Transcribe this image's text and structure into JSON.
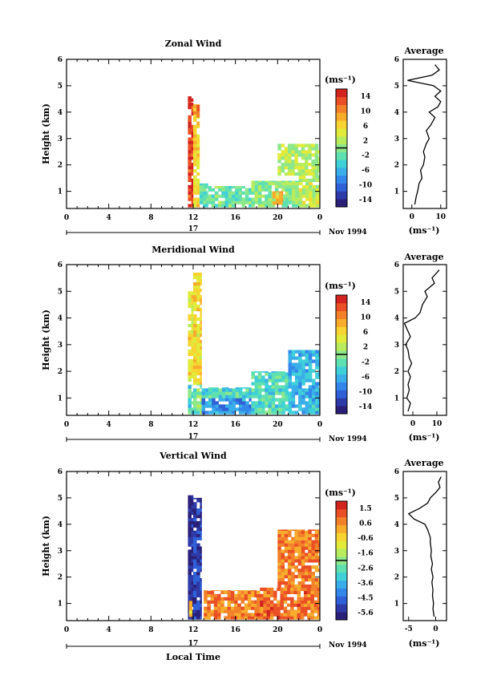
{
  "chart_data": [
    {
      "type": "heatmap",
      "title": "Zonal Wind",
      "xlabel": "",
      "ylabel": "Height (km)",
      "x_ticks": [
        "0",
        "4",
        "8",
        "12",
        "16",
        "20",
        "0"
      ],
      "y_ticks": [
        "1",
        "2",
        "3",
        "4",
        "5",
        "6"
      ],
      "xlim": [
        0,
        24
      ],
      "ylim": [
        0.35,
        6.0
      ],
      "date_label": "17",
      "date_suffix": "Nov 1994",
      "colorbar": {
        "unit": "(ms⁻¹)",
        "ticks": [
          "14",
          "10",
          "6",
          "2",
          "-2",
          "-6",
          "-10",
          "-14"
        ],
        "range": [
          -16,
          16
        ]
      },
      "data_regions": [
        {
          "x": [
            11.5,
            12.0
          ],
          "y": [
            0.4,
            4.4
          ],
          "value": 14
        },
        {
          "x": [
            11.5,
            12.0
          ],
          "y": [
            4.4,
            4.6
          ],
          "value": 16
        },
        {
          "x": [
            12.0,
            12.6
          ],
          "y": [
            0.4,
            3.8
          ],
          "value": 6
        },
        {
          "x": [
            12.0,
            12.6
          ],
          "y": [
            3.8,
            4.3
          ],
          "value": 10
        },
        {
          "x": [
            12.6,
            13.4
          ],
          "y": [
            0.4,
            1.3
          ],
          "value": -2
        },
        {
          "x": [
            13.4,
            17.5
          ],
          "y": [
            0.4,
            1.2
          ],
          "value": -1
        },
        {
          "x": [
            17.5,
            22.0
          ],
          "y": [
            0.4,
            1.4
          ],
          "value": 0
        },
        {
          "x": [
            19.5,
            20.5
          ],
          "y": [
            0.5,
            1.0
          ],
          "value": 9
        },
        {
          "x": [
            22.0,
            24.0
          ],
          "y": [
            0.4,
            1.6
          ],
          "value": 3
        },
        {
          "x": [
            20.0,
            24.0
          ],
          "y": [
            1.6,
            2.8
          ],
          "value": 2
        }
      ],
      "profile": {
        "title": "Average",
        "xlabel": "(ms⁻¹)",
        "x_ticks": [
          "0",
          "10"
        ],
        "xlim": [
          -3,
          12
        ],
        "height": [
          0.5,
          0.8,
          1.0,
          1.3,
          1.5,
          1.8,
          2.0,
          2.3,
          2.5,
          2.8,
          3.0,
          3.3,
          3.5,
          3.8,
          4.0,
          4.2,
          4.4,
          4.6,
          4.8,
          5.0,
          5.2,
          5.4,
          5.6,
          5.8
        ],
        "value": [
          1.0,
          1.5,
          2.0,
          2.5,
          3.5,
          3.0,
          4.0,
          4.5,
          4.0,
          5.0,
          6.0,
          5.0,
          6.5,
          8.0,
          6.0,
          9.0,
          10.0,
          8.0,
          10.0,
          7.5,
          -1.5,
          7.0,
          9.5,
          8.0
        ]
      }
    },
    {
      "type": "heatmap",
      "title": "Meridional Wind",
      "xlabel": "",
      "ylabel": "Height (km)",
      "x_ticks": [
        "0",
        "4",
        "8",
        "12",
        "16",
        "20",
        "0"
      ],
      "y_ticks": [
        "1",
        "2",
        "3",
        "4",
        "5",
        "6"
      ],
      "xlim": [
        0,
        24
      ],
      "ylim": [
        0.35,
        6.0
      ],
      "date_label": "17",
      "date_suffix": "Nov 1994",
      "colorbar": {
        "unit": "(ms⁻¹)",
        "ticks": [
          "14",
          "10",
          "6",
          "2",
          "-2",
          "-6",
          "-10",
          "-14"
        ],
        "range": [
          -16,
          16
        ]
      },
      "data_regions": [
        {
          "x": [
            11.5,
            12.0
          ],
          "y": [
            0.4,
            1.5
          ],
          "value": -3
        },
        {
          "x": [
            11.5,
            12.0
          ],
          "y": [
            1.5,
            5.0
          ],
          "value": 5
        },
        {
          "x": [
            12.0,
            12.8
          ],
          "y": [
            1.5,
            5.7
          ],
          "value": 6
        },
        {
          "x": [
            12.0,
            12.8
          ],
          "y": [
            0.4,
            1.5
          ],
          "value": -1
        },
        {
          "x": [
            12.8,
            17.5
          ],
          "y": [
            0.4,
            1.0
          ],
          "value": -8
        },
        {
          "x": [
            12.8,
            17.5
          ],
          "y": [
            1.0,
            1.4
          ],
          "value": -3
        },
        {
          "x": [
            17.5,
            21.0
          ],
          "y": [
            0.4,
            2.0
          ],
          "value": -3
        },
        {
          "x": [
            21.0,
            24.0
          ],
          "y": [
            0.4,
            2.8
          ],
          "value": -6
        }
      ],
      "profile": {
        "title": "Average",
        "xlabel": "(ms⁻¹)",
        "x_ticks": [
          "0",
          "10"
        ],
        "xlim": [
          -4,
          14
        ],
        "height": [
          0.5,
          0.8,
          1.0,
          1.3,
          1.5,
          1.8,
          2.0,
          2.3,
          2.5,
          2.8,
          3.0,
          3.3,
          3.5,
          3.8,
          4.0,
          4.2,
          4.5,
          4.8,
          5.0,
          5.3,
          5.5,
          5.8
        ],
        "value": [
          -2.0,
          -1.0,
          -2.5,
          -1.5,
          -2.0,
          -1.0,
          -2.0,
          -0.5,
          -1.5,
          -2.0,
          -3.0,
          -1.0,
          -2.0,
          -3.5,
          1.0,
          3.0,
          4.0,
          6.0,
          5.0,
          9.0,
          8.0,
          11.0
        ]
      }
    },
    {
      "type": "heatmap",
      "title": "Vertical Wind",
      "xlabel": "Local Time",
      "ylabel": "Height (km)",
      "x_ticks": [
        "0",
        "4",
        "8",
        "12",
        "16",
        "20",
        "0"
      ],
      "y_ticks": [
        "1",
        "2",
        "3",
        "4",
        "5",
        "6"
      ],
      "xlim": [
        0,
        24
      ],
      "ylim": [
        0.35,
        6.0
      ],
      "date_label": "17",
      "date_suffix": "Nov 1994",
      "colorbar": {
        "unit": "(ms⁻¹)",
        "ticks": [
          "1.5",
          "0.6",
          "-0.6",
          "-1.6",
          "-2.6",
          "-3.6",
          "-4.5",
          "-5.6"
        ],
        "range": [
          -6.1,
          2.0
        ]
      },
      "data_regions": [
        {
          "x": [
            11.5,
            12.0
          ],
          "y": [
            0.4,
            5.1
          ],
          "value": -5.6
        },
        {
          "x": [
            12.0,
            12.8
          ],
          "y": [
            0.4,
            5.0
          ],
          "value": -5.2
        },
        {
          "x": [
            11.6,
            11.9
          ],
          "y": [
            0.5,
            1.1
          ],
          "value": -0.6
        },
        {
          "x": [
            13.0,
            18.0
          ],
          "y": [
            0.4,
            1.5
          ],
          "value": 0.6
        },
        {
          "x": [
            18.0,
            24.0
          ],
          "y": [
            0.4,
            1.6
          ],
          "value": 0.8
        },
        {
          "x": [
            20.0,
            24.0
          ],
          "y": [
            1.6,
            3.8
          ],
          "value": 0.7
        }
      ],
      "profile": {
        "title": "Average",
        "xlabel": "(ms⁻¹)",
        "x_ticks": [
          "-5",
          "0"
        ],
        "xlim": [
          -6,
          2
        ],
        "height": [
          0.5,
          0.8,
          1.0,
          1.3,
          1.5,
          1.8,
          2.0,
          2.3,
          2.5,
          2.8,
          3.0,
          3.3,
          3.5,
          3.8,
          4.0,
          4.2,
          4.4,
          4.6,
          4.8,
          5.0,
          5.2,
          5.4,
          5.6,
          5.8
        ],
        "value": [
          -0.3,
          -0.5,
          -0.4,
          -0.6,
          -0.5,
          -0.7,
          -0.5,
          -0.8,
          -0.6,
          -0.9,
          -0.8,
          -1.0,
          -1.0,
          -1.5,
          -2.0,
          -4.0,
          -5.0,
          -3.0,
          -1.5,
          -1.0,
          0.0,
          0.8,
          0.5,
          1.0
        ]
      }
    }
  ]
}
